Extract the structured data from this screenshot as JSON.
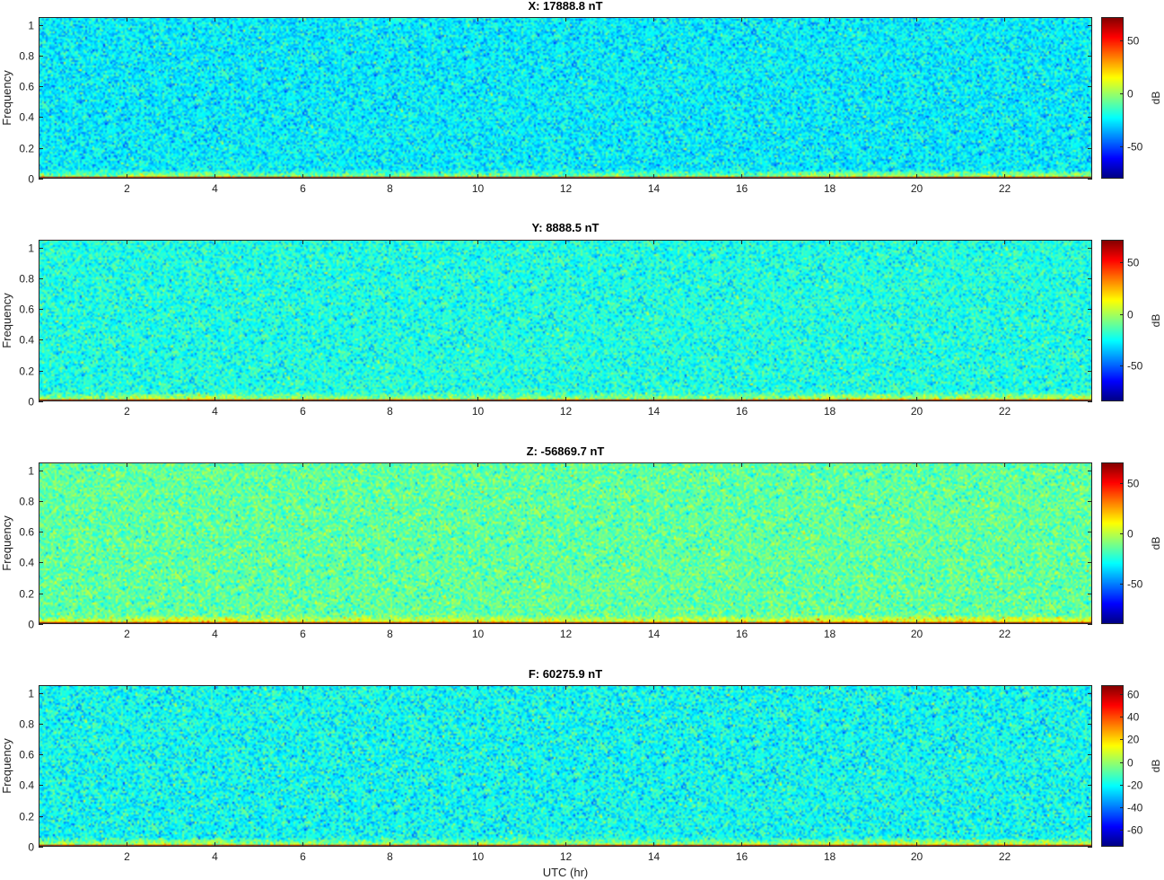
{
  "figure": {
    "xlabel": "UTC (hr)"
  },
  "chart_data": [
    {
      "type": "heatmap",
      "title": "X: 17888.8 nT",
      "xlabel": "",
      "ylabel": "Frequency",
      "xlim": [
        0,
        24
      ],
      "ylim": [
        0,
        1.05
      ],
      "xticks": [
        2,
        4,
        6,
        8,
        10,
        12,
        14,
        16,
        18,
        20,
        22
      ],
      "yticks": [
        0,
        0.2,
        0.4,
        0.6,
        0.8,
        1
      ],
      "colorbar": {
        "label": "dB",
        "clim": [
          -80,
          72
        ],
        "ticks": [
          -50,
          0,
          50
        ]
      },
      "colormap": "jet",
      "background_db": -25,
      "low_band_db": 25,
      "base_line_db": 72
    },
    {
      "type": "heatmap",
      "title": "Y: 8888.5 nT",
      "xlabel": "",
      "ylabel": "Frequency",
      "xlim": [
        0,
        24
      ],
      "ylim": [
        0,
        1.05
      ],
      "xticks": [
        2,
        4,
        6,
        8,
        10,
        12,
        14,
        16,
        18,
        20,
        22
      ],
      "yticks": [
        0,
        0.2,
        0.4,
        0.6,
        0.8,
        1
      ],
      "colorbar": {
        "label": "dB",
        "clim": [
          -85,
          72
        ],
        "ticks": [
          -50,
          0,
          50
        ]
      },
      "colormap": "jet",
      "background_db": -22,
      "low_band_db": 28,
      "base_line_db": 72
    },
    {
      "type": "heatmap",
      "title": "Z: -56869.7 nT",
      "xlabel": "",
      "ylabel": "Frequency",
      "xlim": [
        0,
        24
      ],
      "ylim": [
        0,
        1.05
      ],
      "xticks": [
        2,
        4,
        6,
        8,
        10,
        12,
        14,
        16,
        18,
        20,
        22
      ],
      "yticks": [
        0,
        0.2,
        0.4,
        0.6,
        0.8,
        1
      ],
      "colorbar": {
        "label": "dB",
        "clim": [
          -90,
          70
        ],
        "ticks": [
          -50,
          0,
          50
        ]
      },
      "colormap": "jet",
      "background_db": -15,
      "low_band_db": 35,
      "base_line_db": 70
    },
    {
      "type": "heatmap",
      "title": "F: 60275.9 nT",
      "xlabel": "UTC (hr)",
      "ylabel": "Frequency",
      "xlim": [
        0,
        24
      ],
      "ylim": [
        0,
        1.05
      ],
      "xticks": [
        2,
        4,
        6,
        8,
        10,
        12,
        14,
        16,
        18,
        20,
        22
      ],
      "yticks": [
        0,
        0.2,
        0.4,
        0.6,
        0.8,
        1
      ],
      "colorbar": {
        "label": "dB",
        "clim": [
          -75,
          68
        ],
        "ticks": [
          -60,
          -40,
          -20,
          0,
          20,
          40,
          60
        ]
      },
      "colormap": "jet",
      "background_db": -20,
      "low_band_db": 30,
      "base_line_db": 68
    }
  ]
}
